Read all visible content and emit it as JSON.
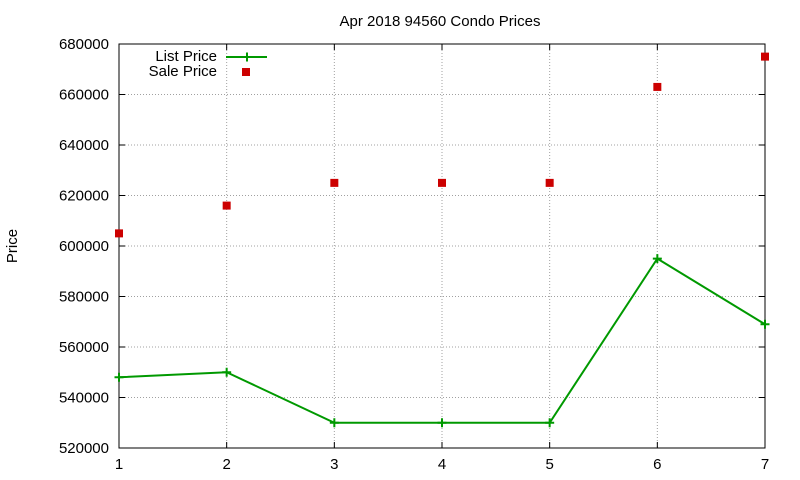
{
  "chart_data": {
    "type": "line",
    "title": "Apr 2018 94560 Condo Prices",
    "xlabel": "",
    "ylabel": "Price",
    "x": [
      1,
      2,
      3,
      4,
      5,
      6,
      7
    ],
    "xlim": [
      1,
      7
    ],
    "ylim": [
      520000,
      680000
    ],
    "xticks": [
      "1",
      "2",
      "3",
      "4",
      "5",
      "6",
      "7"
    ],
    "yticks": [
      "520000",
      "540000",
      "560000",
      "580000",
      "600000",
      "620000",
      "640000",
      "660000",
      "680000"
    ],
    "grid": true,
    "legend_position": "top-left",
    "series": [
      {
        "name": "List Price",
        "style": "line+cross",
        "color": "#009900",
        "values": [
          548000,
          550000,
          530000,
          530000,
          530000,
          595000,
          569000
        ]
      },
      {
        "name": "Sale Price",
        "style": "square-points",
        "color": "#cc0000",
        "values": [
          605000,
          616000,
          625000,
          625000,
          625000,
          663000,
          675000
        ]
      }
    ]
  }
}
